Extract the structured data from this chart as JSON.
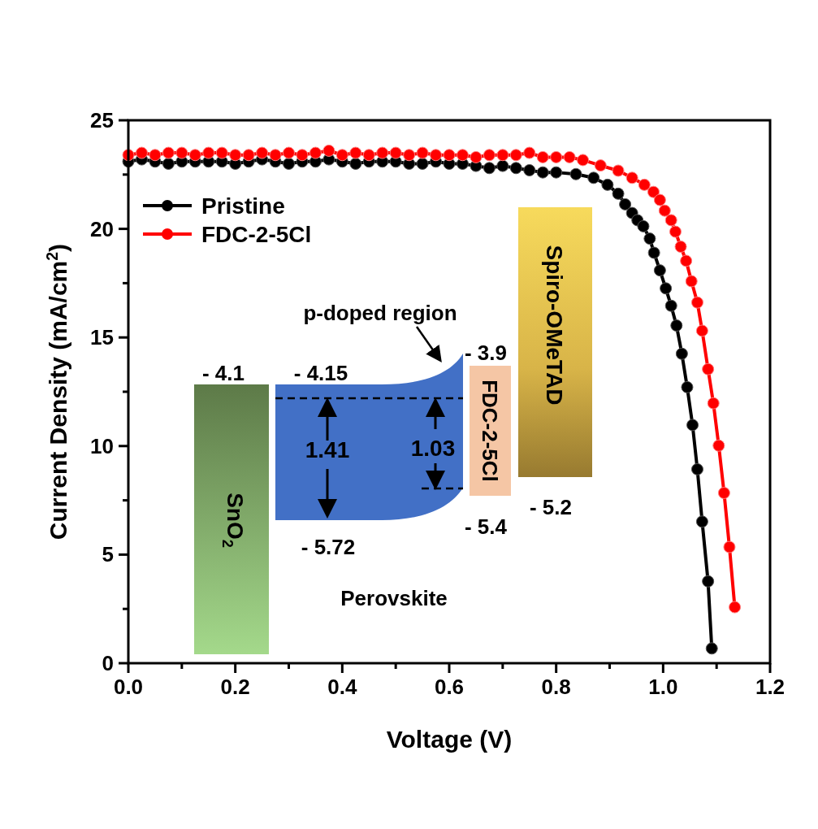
{
  "chart_data": {
    "type": "line",
    "xlabel": "Voltage (V)",
    "ylabel": "Current Density (mA/cm$^{2}$)",
    "xlim": [
      0,
      1.2
    ],
    "ylim": [
      0,
      25
    ],
    "xticks": [
      {
        "value": 0,
        "label": "0.0"
      },
      {
        "value": 0.1,
        "label": null
      },
      {
        "value": 0.2,
        "label": "0.2"
      },
      {
        "value": 0.3,
        "label": null
      },
      {
        "value": 0.4,
        "label": "0.4"
      },
      {
        "value": 0.5,
        "label": null
      },
      {
        "value": 0.6,
        "label": "0.6"
      },
      {
        "value": 0.7,
        "label": null
      },
      {
        "value": 0.8,
        "label": "0.8"
      },
      {
        "value": 0.9,
        "label": null
      },
      {
        "value": 1,
        "label": "1.0"
      },
      {
        "value": 1.1,
        "label": null
      },
      {
        "value": 1.2,
        "label": "1.2"
      }
    ],
    "yticks": [
      0,
      {
        "value": 2.5,
        "label": null
      },
      5,
      {
        "value": 7.5,
        "label": null
      },
      10,
      {
        "value": 12.5,
        "label": null
      },
      15,
      {
        "value": 17.5,
        "label": null
      },
      20,
      {
        "value": 22.5,
        "label": null
      },
      25
    ],
    "grid": false,
    "legend": "top left",
    "marker": "circle",
    "line_style": "solid",
    "series": [
      {
        "name": "Pristine",
        "color": "#000000",
        "x": [
          0,
          0.025,
          0.05,
          0.075,
          0.1,
          0.125,
          0.15,
          0.175,
          0.2,
          0.225,
          0.25,
          0.275,
          0.3,
          0.325,
          0.35,
          0.375,
          0.4,
          0.425,
          0.45,
          0.475,
          0.5,
          0.525,
          0.55,
          0.575,
          0.6,
          0.625,
          0.65,
          0.675,
          0.7,
          0.725,
          0.75,
          0.775,
          0.8,
          0.837,
          0.87,
          0.896,
          0.916,
          0.929,
          0.942,
          0.952,
          0.963,
          0.975,
          0.983,
          0.994,
          1.005,
          1.015,
          1.025,
          1.035,
          1.045,
          1.055,
          1.064,
          1.073,
          1.084,
          1.091
        ],
        "values": [
          23.1,
          23.2,
          23.1,
          23.0,
          23.1,
          23.1,
          23.1,
          23.1,
          23.0,
          23.1,
          23.2,
          23.1,
          23.0,
          23.1,
          23.1,
          23.2,
          23.1,
          23.0,
          23.1,
          23.1,
          23.1,
          23.0,
          23.0,
          23.1,
          23.0,
          23.0,
          22.9,
          22.8,
          22.9,
          22.8,
          22.7,
          22.6,
          22.6,
          22.52,
          22.35,
          22.03,
          21.62,
          21.13,
          20.73,
          20.4,
          20.12,
          19.55,
          18.9,
          18.09,
          17.26,
          16.46,
          15.55,
          14.25,
          12.71,
          10.97,
          8.93,
          6.52,
          3.77,
          0.68
        ]
      },
      {
        "name": "FDC-2-5Cl",
        "color": "#ff0000",
        "x": [
          0,
          0.025,
          0.05,
          0.075,
          0.1,
          0.125,
          0.15,
          0.175,
          0.2,
          0.225,
          0.25,
          0.275,
          0.3,
          0.325,
          0.35,
          0.375,
          0.4,
          0.425,
          0.45,
          0.475,
          0.5,
          0.525,
          0.55,
          0.575,
          0.6,
          0.625,
          0.65,
          0.675,
          0.7,
          0.725,
          0.75,
          0.775,
          0.8,
          0.825,
          0.85,
          0.883,
          0.916,
          0.942,
          0.965,
          0.982,
          0.994,
          1.003,
          1.015,
          1.023,
          1.033,
          1.043,
          1.053,
          1.064,
          1.073,
          1.084,
          1.094,
          1.104,
          1.114,
          1.124,
          1.134
        ],
        "values": [
          23.4,
          23.5,
          23.4,
          23.5,
          23.5,
          23.4,
          23.5,
          23.5,
          23.4,
          23.4,
          23.5,
          23.4,
          23.5,
          23.4,
          23.5,
          23.6,
          23.4,
          23.5,
          23.4,
          23.5,
          23.5,
          23.4,
          23.5,
          23.4,
          23.4,
          23.4,
          23.3,
          23.4,
          23.4,
          23.4,
          23.5,
          23.3,
          23.3,
          23.3,
          23.17,
          22.92,
          22.68,
          22.35,
          22.03,
          21.7,
          21.33,
          20.84,
          20.4,
          19.87,
          19.18,
          18.53,
          17.59,
          16.61,
          15.31,
          13.54,
          11.97,
          10.02,
          7.84,
          5.35,
          2.58
        ]
      }
    ],
    "annotations": [
      "p-doped region",
      "- 3.9",
      "- 4.1",
      "- 4.15",
      "1.41",
      "1.03",
      "- 5.72",
      "- 5.4",
      "- 5.2",
      "Perovskite",
      "SnO$_{2}$",
      "FDC-2-5Cl",
      "Spiro-OMeTAD"
    ]
  }
}
